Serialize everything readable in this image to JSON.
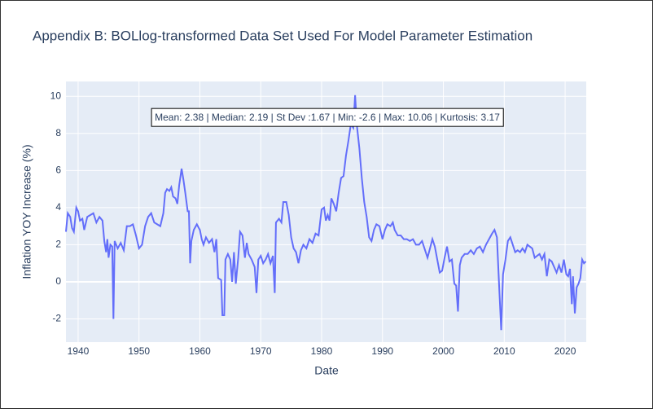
{
  "chart_data": {
    "type": "line",
    "title": "Appendix B: BOLlog-transformed Data Set Used For Model Parameter Estimation",
    "xlabel": "Date",
    "ylabel": "Inflation YOY Increase (%)",
    "annotation": "Mean: 2.38 | Median: 2.19 | St Dev :1.67 | Min: -2.6 | Max: 10.06 | Kurtosis: 3.17",
    "xlim": [
      1938,
      2023.47
    ],
    "ylim": [
      -3.25,
      10.8
    ],
    "xticks": [
      1940,
      1950,
      1960,
      1970,
      1980,
      1990,
      2000,
      2010,
      2020
    ],
    "yticks": [
      -2,
      0,
      2,
      4,
      6,
      8,
      10
    ],
    "grid": true,
    "series": [
      {
        "color": "#636efa",
        "x": [
          1938,
          1938.3,
          1938.7,
          1939,
          1939.3,
          1939.7,
          1940,
          1940.3,
          1940.7,
          1941,
          1941.5,
          1942,
          1942.5,
          1943,
          1943.5,
          1944,
          1944.3,
          1944.6,
          1944.8,
          1945,
          1945.3,
          1945.6,
          1945.8,
          1946,
          1946.5,
          1947,
          1947.5,
          1948,
          1948.5,
          1949,
          1949.5,
          1950,
          1950.5,
          1951,
          1951.5,
          1952,
          1952.5,
          1953,
          1953.5,
          1954,
          1954.3,
          1954.6,
          1955,
          1955.3,
          1955.6,
          1956,
          1956.3,
          1956.6,
          1957,
          1957.3,
          1957.6,
          1958,
          1958.2,
          1958.4,
          1958.6,
          1959,
          1959.5,
          1960,
          1960.3,
          1960.6,
          1961,
          1961.5,
          1962,
          1962.4,
          1962.7,
          1963,
          1963.5,
          1963.7,
          1964,
          1964.2,
          1964.6,
          1965,
          1965.3,
          1965.6,
          1965.9,
          1966.3,
          1966.6,
          1967,
          1967.4,
          1967.7,
          1968,
          1968.5,
          1969,
          1969.3,
          1969.6,
          1970,
          1970.4,
          1970.8,
          1971.2,
          1971.6,
          1972,
          1972.3,
          1972.5,
          1973,
          1973.4,
          1973.7,
          1974.2,
          1974.6,
          1975,
          1975.4,
          1975.8,
          1976.2,
          1976.6,
          1977,
          1977.5,
          1978,
          1978.5,
          1979,
          1979.5,
          1980,
          1980.4,
          1980.7,
          1981,
          1981.3,
          1981.6,
          1982,
          1982.4,
          1982.8,
          1983.2,
          1983.6,
          1984,
          1984.4,
          1984.8,
          1985.2,
          1985.5,
          1985.8,
          1986.2,
          1986.6,
          1987,
          1987.4,
          1987.8,
          1988.2,
          1988.6,
          1989,
          1989.5,
          1990,
          1990.4,
          1990.8,
          1991.3,
          1991.7,
          1992,
          1992.5,
          1993,
          1993.5,
          1994,
          1994.5,
          1995,
          1995.5,
          1996,
          1996.5,
          1997,
          1997.4,
          1997.8,
          1998.2,
          1998.6,
          1999,
          1999.4,
          1999.8,
          2000.2,
          2000.6,
          2001,
          2001.4,
          2001.8,
          2002.1,
          2002.4,
          2002.7,
          2003,
          2003.5,
          2004,
          2004.5,
          2005,
          2005.5,
          2006,
          2006.5,
          2007,
          2007.5,
          2008,
          2008.4,
          2008.8,
          2009.2,
          2009.5,
          2009.8,
          2010.2,
          2010.6,
          2011,
          2011.4,
          2011.8,
          2012.2,
          2012.6,
          2013,
          2013.4,
          2013.8,
          2014.2,
          2014.6,
          2015,
          2015.4,
          2015.8,
          2016.2,
          2016.6,
          2017,
          2017.4,
          2017.8,
          2018.2,
          2018.6,
          2019,
          2019.4,
          2019.8,
          2020.2,
          2020.5,
          2020.8,
          2021.1,
          2021.3,
          2021.6,
          2021.9,
          2022.2,
          2022.5,
          2022.8,
          2023.1,
          2023.4
        ],
        "values": [
          2.7,
          3.7,
          3.5,
          2.9,
          2.7,
          4.0,
          3.8,
          3.3,
          3.4,
          2.8,
          3.5,
          3.6,
          3.7,
          3.2,
          3.5,
          3.3,
          2.2,
          1.6,
          2.3,
          1.3,
          2.0,
          1.9,
          -2.0,
          2.2,
          1.8,
          2.1,
          1.7,
          3.0,
          3.0,
          3.1,
          2.5,
          1.8,
          2.0,
          3.0,
          3.5,
          3.7,
          3.2,
          3.1,
          3.0,
          3.7,
          4.8,
          5.0,
          4.9,
          5.1,
          4.6,
          4.5,
          4.2,
          5.2,
          6.1,
          5.5,
          4.8,
          3.8,
          3.8,
          1.0,
          2.2,
          2.8,
          3.1,
          2.8,
          2.3,
          2.0,
          2.4,
          2.1,
          2.3,
          1.6,
          2.3,
          0.2,
          0.1,
          -1.8,
          -1.8,
          1.2,
          1.5,
          1.2,
          0.0,
          1.6,
          -0.1,
          1.3,
          2.7,
          2.5,
          1.3,
          2.1,
          1.5,
          1.2,
          0.8,
          -0.6,
          1.2,
          1.4,
          1.0,
          1.2,
          1.5,
          1.0,
          1.4,
          -0.6,
          3.2,
          3.4,
          3.2,
          4.3,
          4.3,
          3.6,
          2.4,
          1.8,
          1.6,
          1.0,
          1.7,
          2.0,
          1.8,
          2.3,
          2.1,
          2.6,
          2.5,
          3.9,
          4.0,
          3.3,
          3.6,
          3.3,
          4.5,
          4.2,
          3.8,
          4.8,
          5.6,
          5.7,
          6.8,
          7.6,
          8.5,
          8.3,
          10.06,
          8.4,
          7.2,
          5.6,
          4.3,
          3.5,
          2.4,
          2.2,
          2.8,
          3.1,
          3.0,
          2.3,
          2.8,
          3.1,
          3.0,
          3.2,
          2.8,
          2.5,
          2.5,
          2.3,
          2.3,
          2.2,
          2.3,
          2.0,
          2.0,
          2.2,
          1.7,
          1.3,
          1.8,
          2.3,
          1.9,
          1.2,
          0.5,
          0.6,
          1.3,
          1.9,
          1.1,
          1.2,
          -0.1,
          -0.2,
          -1.6,
          0.9,
          1.3,
          1.5,
          1.5,
          1.7,
          1.5,
          1.8,
          1.9,
          1.6,
          2.0,
          2.3,
          2.6,
          2.8,
          2.4,
          -0.5,
          -2.6,
          0.4,
          1.2,
          2.2,
          2.4,
          2.0,
          1.6,
          1.7,
          1.6,
          1.8,
          1.6,
          2.0,
          1.9,
          1.8,
          1.3,
          1.4,
          1.5,
          1.2,
          1.5,
          0.3,
          1.2,
          1.1,
          0.8,
          0.5,
          0.9,
          0.5,
          1.2,
          0.4,
          0.3,
          0.7,
          -1.2,
          0.3,
          -1.7,
          -0.3,
          -0.1,
          0.2,
          1.2,
          1.0,
          1.1
        ]
      }
    ]
  }
}
